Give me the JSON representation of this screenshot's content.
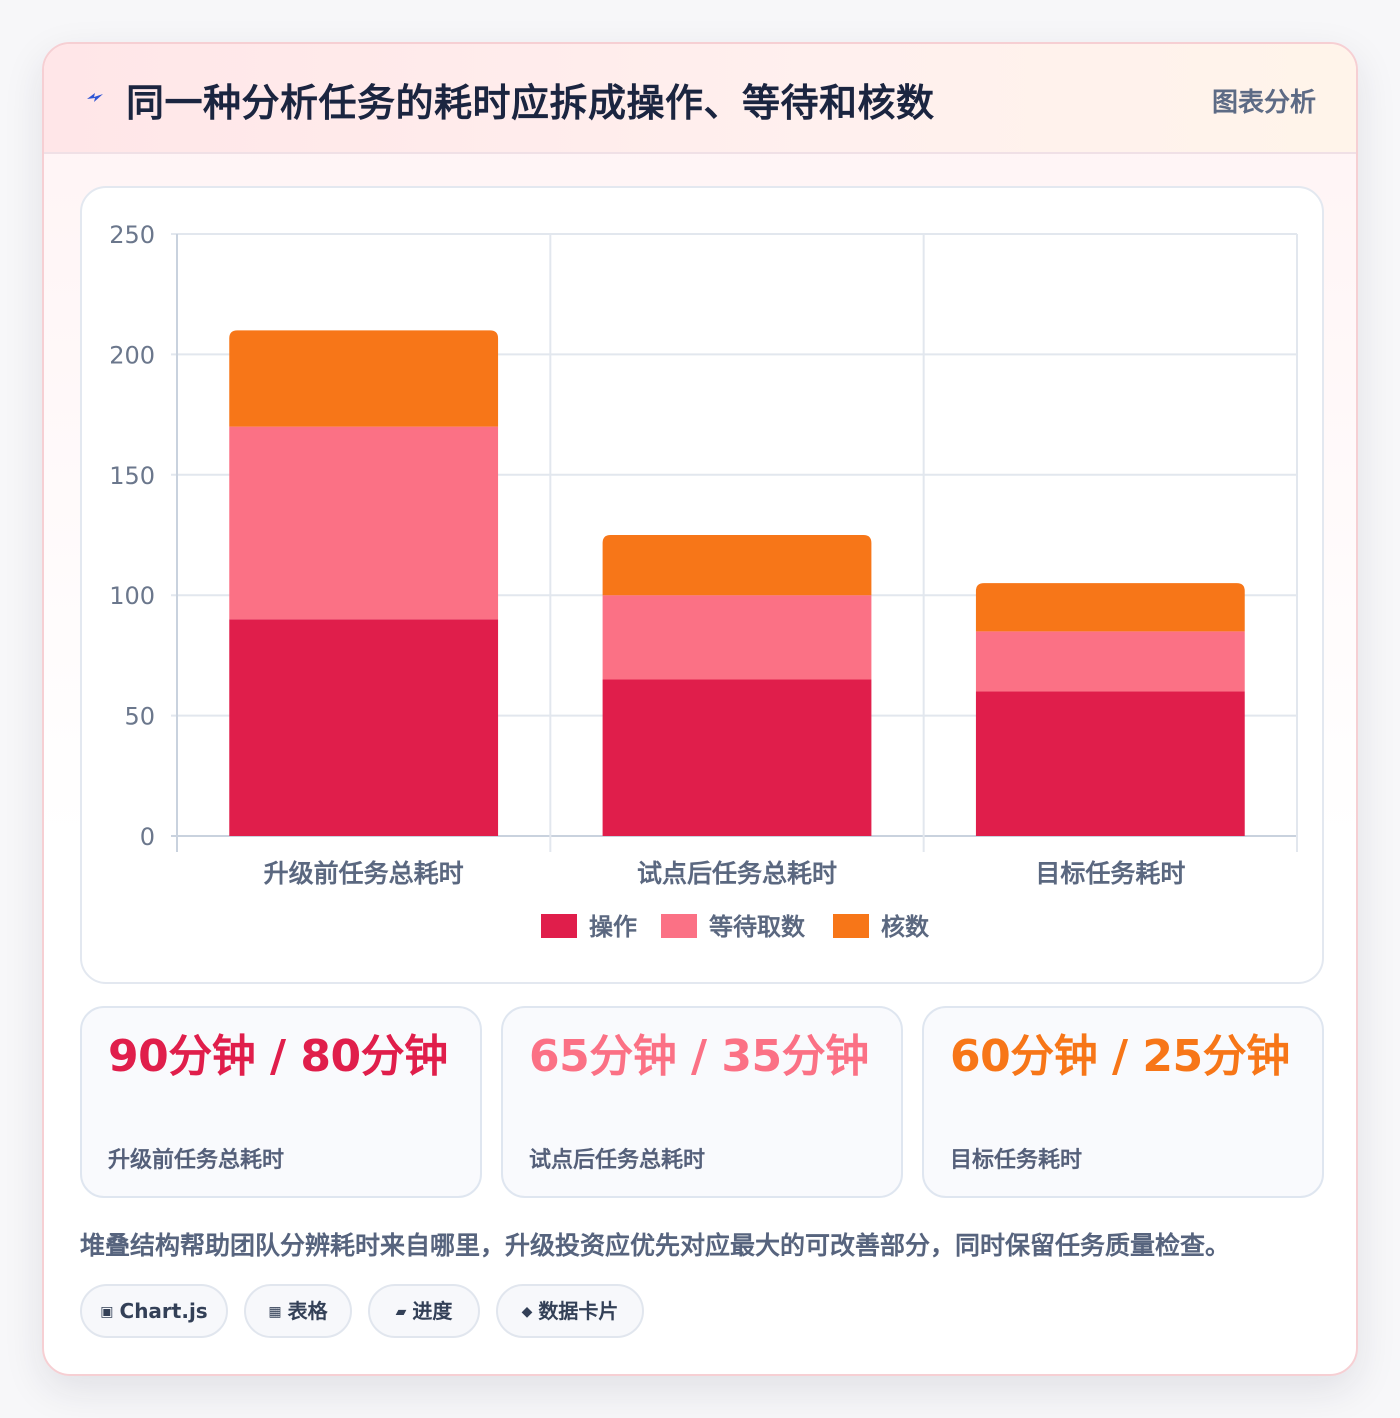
{
  "header": {
    "title": "同一种分析任务的耗时应拆成操作、等待和核数",
    "tag": "图表分析",
    "icon": "bolt-icon"
  },
  "chart_data": {
    "type": "bar",
    "stacked": true,
    "categories": [
      "升级前任务总耗时",
      "试点后任务总耗时",
      "目标任务耗时"
    ],
    "series": [
      {
        "name": "操作",
        "values": [
          90,
          65,
          60
        ],
        "color": "#e01e4b"
      },
      {
        "name": "等待取数",
        "values": [
          80,
          35,
          25
        ],
        "color": "#fb7185"
      },
      {
        "name": "核数",
        "values": [
          40,
          25,
          20
        ],
        "color": "#f77618"
      }
    ],
    "ylim": [
      0,
      250
    ],
    "yticks": [
      0,
      50,
      100,
      150,
      200,
      250
    ],
    "grid": true,
    "legend_position": "bottom"
  },
  "stats": [
    {
      "value": "90分钟 / 80分钟",
      "label": "升级前任务总耗时",
      "color": "#e01e4b"
    },
    {
      "value": "65分钟 / 35分钟",
      "label": "试点后任务总耗时",
      "color": "#fb7185"
    },
    {
      "value": "60分钟 / 25分钟",
      "label": "目标任务耗时",
      "color": "#f77618"
    }
  ],
  "summary": "堆叠结构帮助团队分辨耗时来自哪里，升级投资应优先对应最大的可改善部分，同时保留任务质量检查。",
  "chips": [
    {
      "icon": "▣",
      "label": "Chart.js"
    },
    {
      "icon": "▦",
      "label": "表格"
    },
    {
      "icon": "▰",
      "label": "进度"
    },
    {
      "icon": "◆",
      "label": "数据卡片"
    }
  ]
}
